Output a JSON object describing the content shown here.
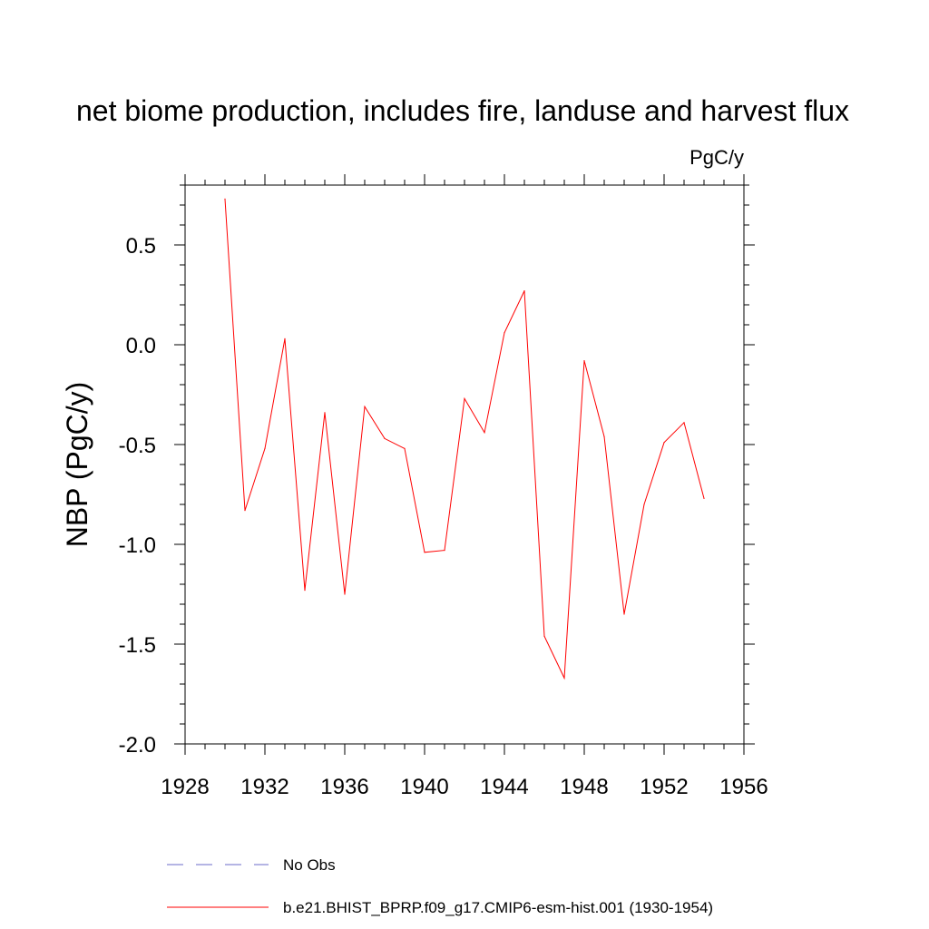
{
  "chart_data": {
    "type": "line",
    "title": "net biome production, includes fire, landuse and harvest flux",
    "units": "PgC/y",
    "xlabel": "",
    "ylabel": "NBP  (PgC/y)",
    "xlim": [
      1928,
      1956
    ],
    "ylim": [
      -2.0,
      0.8
    ],
    "x_ticks": [
      1928,
      1932,
      1936,
      1940,
      1944,
      1948,
      1952,
      1956
    ],
    "x_tick_labels": [
      "1928",
      "1932",
      "1936",
      "1940",
      "1944",
      "1948",
      "1952",
      "1956"
    ],
    "y_ticks": [
      0.5,
      0.0,
      -0.5,
      -1.0,
      -1.5,
      -2.0
    ],
    "y_tick_labels": [
      "0.5",
      "0.0",
      "-0.5",
      "-1.0",
      "-1.5",
      "-2.0"
    ],
    "grid": false,
    "legend_position": "bottom",
    "series": [
      {
        "name": "b.e21.BHIST_BPRP.f09_g17.CMIP6-esm-hist.001 (1930-1954)",
        "color": "#ff0000",
        "dash": "solid",
        "x": [
          1930,
          1931,
          1932,
          1933,
          1934,
          1935,
          1936,
          1937,
          1938,
          1939,
          1940,
          1941,
          1942,
          1943,
          1944,
          1945,
          1946,
          1947,
          1948,
          1949,
          1950,
          1951,
          1952,
          1953,
          1954
        ],
        "y": [
          0.73,
          -0.83,
          -0.52,
          0.03,
          -1.23,
          -0.34,
          -1.25,
          -0.31,
          -0.47,
          -0.52,
          -1.04,
          -1.03,
          -0.27,
          -0.44,
          0.06,
          0.27,
          -1.46,
          -1.67,
          -0.08,
          -0.46,
          -1.35,
          -0.8,
          -0.49,
          -0.39,
          -0.77
        ]
      }
    ],
    "legend": [
      {
        "label": "No Obs",
        "color": "#6b6bc8",
        "dash": "dashed"
      },
      {
        "label": "b.e21.BHIST_BPRP.f09_g17.CMIP6-esm-hist.001 (1930-1954)",
        "color": "#ff0000",
        "dash": "solid"
      }
    ]
  }
}
